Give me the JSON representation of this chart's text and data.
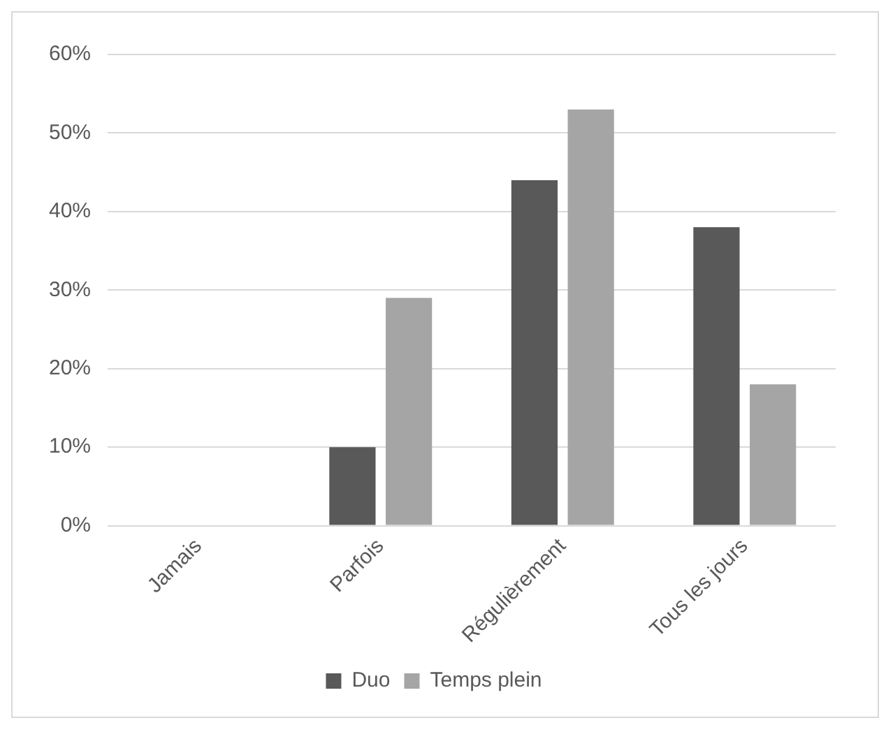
{
  "chart_data": {
    "type": "bar",
    "categories": [
      "Jamais",
      "Parfois",
      "Régulièrement",
      "Tous les jours"
    ],
    "series": [
      {
        "name": "Duo",
        "color": "#595959",
        "values": [
          0,
          10,
          44,
          38
        ]
      },
      {
        "name": "Temps plein",
        "color": "#a5a5a5",
        "values": [
          0,
          29,
          53,
          18
        ]
      }
    ],
    "ylim": [
      0,
      60
    ],
    "yticks": [
      {
        "value": 0,
        "label": "0%"
      },
      {
        "value": 10,
        "label": "10%"
      },
      {
        "value": 20,
        "label": "20%"
      },
      {
        "value": 30,
        "label": "30%"
      },
      {
        "value": 40,
        "label": "40%"
      },
      {
        "value": 50,
        "label": "50%"
      },
      {
        "value": 60,
        "label": "60%"
      }
    ],
    "grid": "y",
    "legend": "bottom"
  }
}
